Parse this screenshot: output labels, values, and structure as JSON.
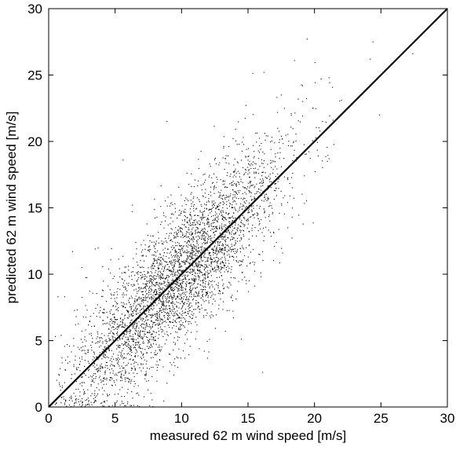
{
  "chart_data": {
    "type": "scatter",
    "title": "",
    "xlabel": "measured 62 m wind speed [m/s]",
    "ylabel": "predicted 62 m wind speed [m/s]",
    "xlim": [
      0,
      30
    ],
    "ylim": [
      0,
      30
    ],
    "xticks": [
      "0",
      "5",
      "10",
      "15",
      "20",
      "25",
      "30"
    ],
    "yticks": [
      "0",
      "5",
      "10",
      "15",
      "20",
      "25",
      "30"
    ],
    "grid": false,
    "legend": "none",
    "marker_color": "#000000",
    "reference_line": {
      "x": [
        0,
        30
      ],
      "y": [
        0,
        30
      ]
    },
    "point_cloud_summary": {
      "approx_count": 4000,
      "relation": "y ≈ x with spread of about ±3 m/s",
      "x_range": [
        0.5,
        27.5
      ],
      "y_range": [
        0,
        27.5
      ]
    },
    "series": [
      {
        "values": [
          [
            24.4,
            27.5
          ],
          [
            24.2,
            26.2
          ],
          [
            18.5,
            26.1
          ],
          [
            27.4,
            26.6
          ],
          [
            16.2,
            25.2
          ],
          [
            21.1,
            24.8
          ],
          [
            20.5,
            24.7
          ],
          [
            19.1,
            24.2
          ],
          [
            24.9,
            22.0
          ],
          [
            21.4,
            21.6
          ],
          [
            8.9,
            21.5
          ],
          [
            5.6,
            18.6
          ],
          [
            21.1,
            18.7
          ],
          [
            6.3,
            15.2
          ],
          [
            17.6,
            11.6
          ],
          [
            18.0,
            13.5
          ],
          [
            13.5,
            14.5
          ],
          [
            14.2,
            12.7
          ],
          [
            13.2,
            14.3
          ],
          [
            14.5,
            5.1
          ],
          [
            12.8,
            7.4
          ],
          [
            13.3,
            5.7
          ],
          [
            16.1,
            2.6
          ],
          [
            9.1,
            2.7
          ],
          [
            8.9,
            1.8
          ],
          [
            0.5,
            5.3
          ],
          [
            0.7,
            8.3
          ],
          [
            1.2,
            8.3
          ],
          [
            1.8,
            11.7
          ],
          [
            3.5,
            11.9
          ],
          [
            2.5,
            10.5
          ],
          [
            1.0,
            3.7
          ],
          [
            0.8,
            2.4
          ],
          [
            3.0,
            0.4
          ],
          [
            4.0,
            0.3
          ],
          [
            4.8,
            0.1
          ],
          [
            5.8,
            0.1
          ],
          [
            6.7,
            0.1
          ],
          [
            7.6,
            0.1
          ],
          [
            6.0,
            10.6
          ],
          [
            9.5,
            15.3
          ],
          [
            17.0,
            19.9
          ],
          [
            19.9,
            22.5
          ],
          [
            20.6,
            21.5
          ],
          [
            22.2,
            22.2
          ]
        ]
      }
    ]
  }
}
